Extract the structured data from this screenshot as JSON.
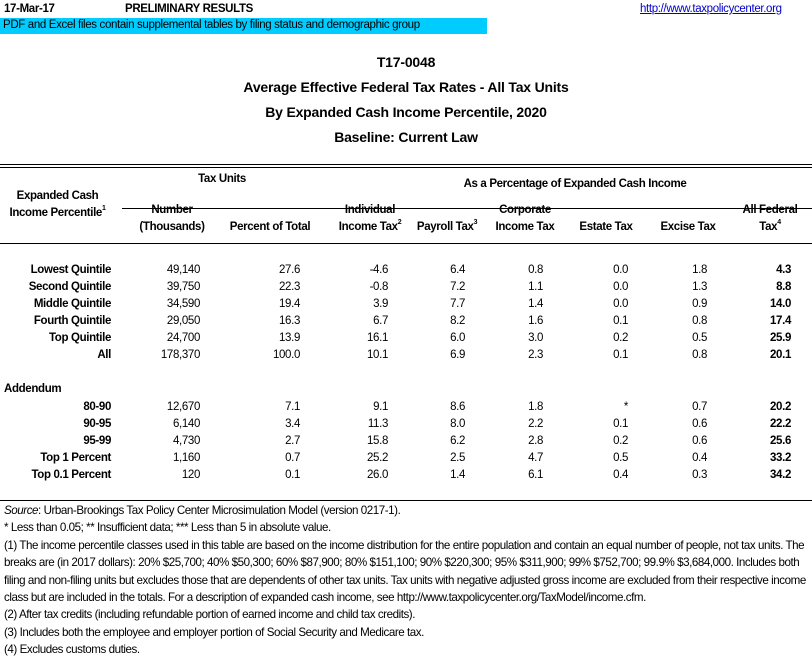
{
  "header": {
    "date": "17-Mar-17",
    "status": "PRELIMINARY RESULTS",
    "link": "http://www.taxpolicycenter.org",
    "banner": "PDF and Excel files contain supplemental tables by filing status and demographic group"
  },
  "titles": [
    "T17-0048",
    "Average Effective Federal Tax Rates - All Tax Units",
    "By Expanded Cash Income Percentile, 2020",
    "Baseline: Current Law"
  ],
  "table": {
    "row_header": {
      "line1": "Expanded Cash",
      "line2": "Income Percentile",
      "sup": "1"
    },
    "group_tax_units": "Tax Units",
    "group_pct": "As a Percentage of Expanded Cash Income",
    "columns": [
      {
        "l1": "Number",
        "l2": "(Thousands)",
        "sup": ""
      },
      {
        "l1": "",
        "l2": "Percent of Total",
        "sup": ""
      },
      {
        "l1": "Individual",
        "l2": "Income Tax",
        "sup": "2"
      },
      {
        "l1": "",
        "l2": "Payroll Tax",
        "sup": "3"
      },
      {
        "l1": "Corporate",
        "l2": "Income Tax",
        "sup": ""
      },
      {
        "l1": "",
        "l2": "Estate Tax",
        "sup": ""
      },
      {
        "l1": "",
        "l2": "Excise Tax",
        "sup": ""
      },
      {
        "l1": "All Federal",
        "l2": "Tax",
        "sup": "4"
      }
    ],
    "rows": [
      [
        "Lowest Quintile",
        "49,140",
        "27.6",
        "-4.6",
        "6.4",
        "0.8",
        "0.0",
        "1.8",
        "4.3"
      ],
      [
        "Second Quintile",
        "39,750",
        "22.3",
        "-0.8",
        "7.2",
        "1.1",
        "0.0",
        "1.3",
        "8.8"
      ],
      [
        "Middle Quintile",
        "34,590",
        "19.4",
        "3.9",
        "7.7",
        "1.4",
        "0.0",
        "0.9",
        "14.0"
      ],
      [
        "Fourth Quintile",
        "29,050",
        "16.3",
        "6.7",
        "8.2",
        "1.6",
        "0.1",
        "0.8",
        "17.4"
      ],
      [
        "Top Quintile",
        "24,700",
        "13.9",
        "16.1",
        "6.0",
        "3.0",
        "0.2",
        "0.5",
        "25.9"
      ],
      [
        "All",
        "178,370",
        "100.0",
        "10.1",
        "6.9",
        "2.3",
        "0.1",
        "0.8",
        "20.1"
      ]
    ],
    "addendum_label": "Addendum",
    "addendum_rows": [
      [
        "80-90",
        "12,670",
        "7.1",
        "9.1",
        "8.6",
        "1.8",
        "*",
        "0.7",
        "20.2"
      ],
      [
        "90-95",
        "6,140",
        "3.4",
        "11.3",
        "8.0",
        "2.2",
        "0.1",
        "0.6",
        "22.2"
      ],
      [
        "95-99",
        "4,730",
        "2.7",
        "15.8",
        "6.2",
        "2.8",
        "0.2",
        "0.6",
        "25.6"
      ],
      [
        "Top 1 Percent",
        "1,160",
        "0.7",
        "25.2",
        "2.5",
        "4.7",
        "0.5",
        "0.4",
        "33.2"
      ],
      [
        "Top 0.1 Percent",
        "120",
        "0.1",
        "26.0",
        "1.4",
        "6.1",
        "0.4",
        "0.3",
        "34.2"
      ]
    ]
  },
  "footnotes": {
    "source_label": "Source",
    "source_text": ": Urban-Brookings Tax Policy Center Microsimulation Model (version 0217-1).",
    "notes": [
      "* Less than 0.05; ** Insufficient data; *** Less than 5 in absolute value.",
      "(1) The income percentile classes used in this table are based on the income distribution for the entire population and contain an equal number of people, not tax units. The breaks are (in 2017 dollars): 20% $25,700; 40% $50,300; 60% $87,900; 80% $151,100; 90% $220,300; 95% $311,900; 99% $752,700; 99.9% $3,684,000. Includes both filing and non-filing units but excludes those that are dependents of other tax units. Tax units with negative adjusted gross income are excluded from their respective income class but are included in the totals. For a description of expanded cash income, see http://www.taxpolicycenter.org/TaxModel/income.cfm.",
      "(2) After tax credits (including refundable portion of earned income and child tax credits).",
      "(3) Includes both the employee and employer portion of Social Security and Medicare tax.",
      "(4) Excludes customs duties."
    ]
  },
  "colors": {
    "banner": "#00ccff",
    "link": "#0000cc"
  }
}
